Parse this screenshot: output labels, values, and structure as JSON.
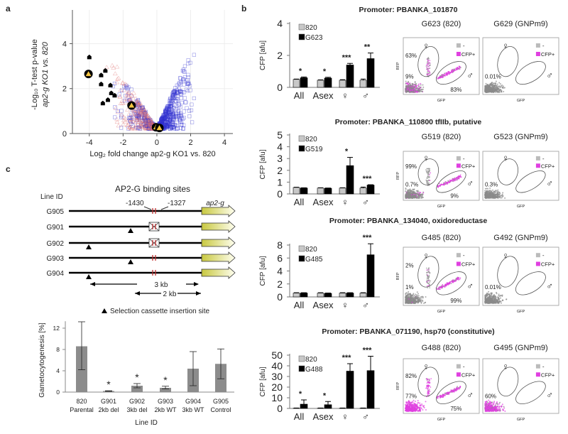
{
  "panel_labels": {
    "a": "a",
    "b": "b",
    "c": "c"
  },
  "chart_data": [
    {
      "type": "scatter",
      "panel": "a",
      "xlabel": "Log₂ fold change ap2-g KO1 vs. 820",
      "ylabel": [
        "-Log₁₀ T-test p-value",
        "ap2-g KO1 vs. 820"
      ],
      "xlim": [
        -5,
        4.5
      ],
      "ylim": [
        0,
        5.5
      ],
      "xticks": [
        "-4",
        "-2",
        "0",
        "2",
        "4"
      ],
      "yticks": [
        "0",
        "2",
        "4"
      ],
      "grid": true,
      "series": [
        {
          "marker": "black-pentagon",
          "color": "#000000",
          "points": [
            [
              -4.0,
              3.4
            ],
            [
              -3.3,
              2.6
            ],
            [
              -3.05,
              2.8
            ],
            [
              -3.3,
              2.2
            ],
            [
              -2.75,
              2.15
            ],
            [
              -2.7,
              1.8
            ],
            [
              -2.5,
              1.7
            ],
            [
              -3.2,
              1.35
            ],
            [
              -2.9,
              1.5
            ]
          ]
        },
        {
          "marker": "yellow-triangle-circled",
          "color": "#f5c542",
          "points": [
            [
              -4.05,
              2.65
            ],
            [
              -1.5,
              1.25
            ],
            [
              -0.05,
              0.28
            ],
            [
              0.15,
              0.25
            ]
          ]
        }
      ],
      "background_colors": {
        "triangles": "#e07070",
        "squares": "#3030d0"
      }
    },
    {
      "type": "bar",
      "panel": "b",
      "title": "Promoter: PBANKA_101870",
      "ylabel": "CFP [afu]",
      "ylim": [
        0,
        4
      ],
      "yticks": [
        "0",
        "2",
        "4"
      ],
      "categories": [
        "All",
        "Asex",
        "♀",
        "♂"
      ],
      "series": [
        {
          "name": "820",
          "color": "#c8c8c8",
          "values": [
            0.5,
            0.45,
            0.45,
            0.45
          ],
          "err_upper": [
            0.52,
            0.47,
            0.48,
            0.52
          ]
        },
        {
          "name": "G623",
          "color": "#000000",
          "values": [
            0.6,
            0.58,
            1.4,
            1.8
          ],
          "err_upper": [
            0.65,
            0.63,
            1.5,
            2.15
          ]
        }
      ],
      "significance": [
        "*",
        "*",
        "***",
        "**"
      ]
    },
    {
      "type": "bar",
      "panel": "b",
      "title": "Promoter:  PBANKA_110800 tfIIb, putative",
      "ylabel": "CFP [afu]",
      "ylim": [
        0,
        5
      ],
      "yticks": [
        "0",
        "1",
        "2",
        "3",
        "4",
        "5"
      ],
      "categories": [
        "All",
        "Asex",
        "♀",
        "♂"
      ],
      "series": [
        {
          "name": "820",
          "color": "#c8c8c8",
          "values": [
            0.55,
            0.5,
            0.5,
            0.5
          ],
          "err_upper": [
            0.57,
            0.52,
            0.52,
            0.58
          ]
        },
        {
          "name": "G519",
          "color": "#000000",
          "values": [
            0.5,
            0.48,
            2.4,
            0.75
          ],
          "err_upper": [
            0.52,
            0.5,
            3.1,
            0.78
          ]
        }
      ],
      "significance": [
        "",
        "",
        "*",
        "***"
      ]
    },
    {
      "type": "bar",
      "panel": "b",
      "title": "Promoter: PBANKA_134040, oxidoreductase",
      "ylabel": "CFP [afu]",
      "ylim": [
        0,
        8.5
      ],
      "yticks": [
        "0",
        "2",
        "4",
        "6",
        "8"
      ],
      "categories": [
        "All",
        "Asex",
        "♀",
        "♂"
      ],
      "series": [
        {
          "name": "820",
          "color": "#c8c8c8",
          "values": [
            0.6,
            0.6,
            0.6,
            0.6
          ],
          "err_upper": [
            0.65,
            0.65,
            0.65,
            0.65
          ]
        },
        {
          "name": "G485",
          "color": "#000000",
          "values": [
            0.6,
            0.55,
            0.6,
            6.5
          ],
          "err_upper": [
            0.65,
            0.6,
            0.65,
            8.2
          ]
        }
      ],
      "significance": [
        "",
        "",
        "",
        "***"
      ]
    },
    {
      "type": "bar",
      "panel": "b",
      "title": "Promoter: PBANKA_071190, hsp70 (constitutive)",
      "ylabel": "CFP [afu]",
      "ylim": [
        0,
        50
      ],
      "yticks": [
        "0",
        "10",
        "20",
        "30",
        "40",
        "50"
      ],
      "categories": [
        "All",
        "Asex",
        "♀",
        "♂"
      ],
      "series": [
        {
          "name": "820",
          "color": "#c8c8c8",
          "values": [
            0.3,
            0.3,
            0.3,
            0.3
          ],
          "err_upper": [
            0.4,
            0.4,
            0.4,
            0.4
          ]
        },
        {
          "name": "G488",
          "color": "#000000",
          "values": [
            4,
            3.5,
            35,
            35.5
          ],
          "err_upper": [
            8,
            6.5,
            42,
            49
          ]
        }
      ],
      "significance": [
        "*",
        "*",
        "***",
        "***"
      ]
    },
    {
      "type": "bar",
      "panel": "c",
      "ylabel": "Gametocytogenesis [%]",
      "xlabel": "Line ID",
      "ylim": [
        0,
        13.5
      ],
      "yticks": [
        "0",
        "4",
        "8",
        "12"
      ],
      "categories": [
        [
          "820",
          "Parental"
        ],
        [
          "G901",
          "2kb del"
        ],
        [
          "G902",
          "3kb del"
        ],
        [
          "G903",
          "2kb WT"
        ],
        [
          "G904",
          "3kb WT"
        ],
        [
          "G905",
          "Control"
        ]
      ],
      "series": [
        {
          "color": "#8c8c8c",
          "values": [
            8.6,
            0.2,
            1.2,
            0.8,
            4.4,
            5.3
          ],
          "err_lower": [
            4.2,
            0.15,
            0.8,
            0.6,
            1.2,
            2.5
          ],
          "err_upper": [
            13.2,
            0.25,
            1.6,
            1.1,
            7.6,
            8.1
          ]
        }
      ],
      "significance": [
        "",
        "*",
        "*",
        "*",
        "",
        ""
      ]
    }
  ],
  "flow_cytometry": [
    {
      "plots": [
        {
          "title": "G623 (820)",
          "female_pct": "63%",
          "gate_pct": "9%",
          "male_pct": "83%"
        },
        {
          "title": "G629 (GNPm9)",
          "female_pct": "",
          "gate_pct": "0.01%",
          "male_pct": ""
        }
      ]
    },
    {
      "plots": [
        {
          "title": "G519 (820)",
          "female_pct": "99%",
          "gate_pct": "0.7%",
          "male_pct": "9%"
        },
        {
          "title": "G523 (GNPm9)",
          "female_pct": "",
          "gate_pct": "0.3%",
          "male_pct": ""
        }
      ]
    },
    {
      "plots": [
        {
          "title": "G485 (820)",
          "female_pct": "2%",
          "gate_pct": "1%",
          "male_pct": "99%"
        },
        {
          "title": "G492 (GNPm9)",
          "female_pct": "",
          "gate_pct": "0.01%",
          "male_pct": ""
        }
      ]
    },
    {
      "plots": [
        {
          "title": "G488 (820)",
          "female_pct": "82%",
          "gate_pct": "77%",
          "male_pct": "75%"
        },
        {
          "title": "G495 (GNPm9)",
          "female_pct": "",
          "gate_pct": "60%",
          "male_pct": ""
        }
      ]
    }
  ],
  "flow_common": {
    "xlabel": "GFP",
    "ylabel": "RFP",
    "legend_neg": "-",
    "legend_pos": "CFP+",
    "female_symbol": "♀",
    "male_symbol": "♂",
    "neg_color": "#8a8a8a",
    "pos_color": "#e040e0"
  },
  "diagram": {
    "title": "AP2-G binding sites",
    "line_id_header": "Line ID",
    "site_left": "-1430",
    "site_right": "-1327",
    "gene_label": "ap2-g",
    "gene_color": "#d8d870",
    "site_color": "#c03030",
    "lines": [
      {
        "id": "G905",
        "insertion": "none",
        "sites_deleted": false
      },
      {
        "id": "G901",
        "insertion": "2kb",
        "sites_deleted": true
      },
      {
        "id": "G902",
        "insertion": "3kb",
        "sites_deleted": true
      },
      {
        "id": "G903",
        "insertion": "2kb",
        "sites_deleted": false
      },
      {
        "id": "G904",
        "insertion": "3kb",
        "sites_deleted": false
      }
    ],
    "arrow_3kb": "3 kb",
    "arrow_2kb": "2 kb",
    "legend": "Selection cassette insertion site"
  }
}
